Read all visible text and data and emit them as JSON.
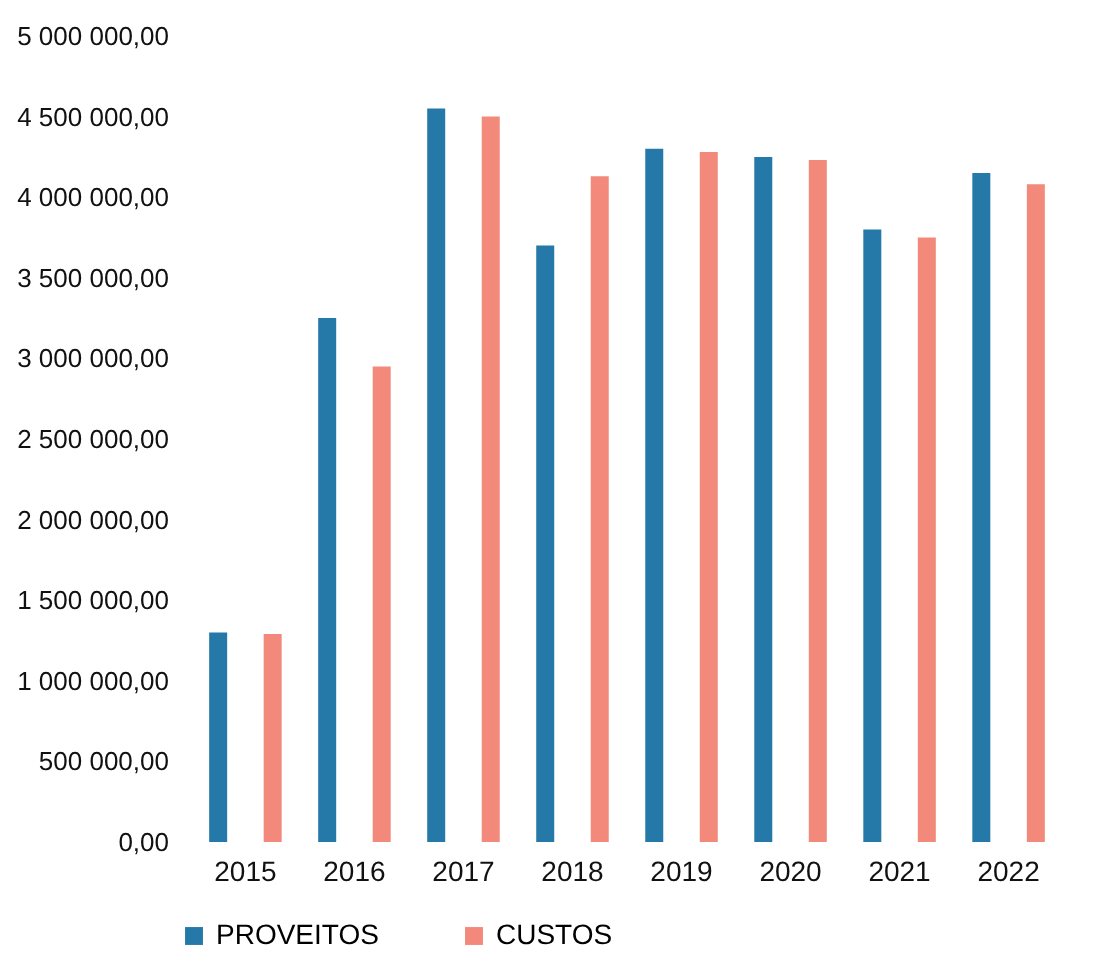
{
  "chart_data": {
    "type": "bar",
    "categories": [
      "2015",
      "2016",
      "2017",
      "2018",
      "2019",
      "2020",
      "2021",
      "2022"
    ],
    "series": [
      {
        "name": "PROVEITOS",
        "color": "#2479a8",
        "values": [
          1300000,
          3250000,
          4550000,
          3700000,
          4300000,
          4250000,
          3800000,
          4150000
        ]
      },
      {
        "name": "CUSTOS",
        "color": "#f2897a",
        "values": [
          1290000,
          2950000,
          4500000,
          4130000,
          4280000,
          4230000,
          3750000,
          4080000
        ]
      }
    ],
    "ylim": [
      0,
      5000000
    ],
    "yticks": [
      {
        "value": 0,
        "label": "0,00"
      },
      {
        "value": 500000,
        "label": "500 000,00"
      },
      {
        "value": 1000000,
        "label": "1 000 000,00"
      },
      {
        "value": 1500000,
        "label": "1 500 000,00"
      },
      {
        "value": 2000000,
        "label": "2 000 000,00"
      },
      {
        "value": 2500000,
        "label": "2 500 000,00"
      },
      {
        "value": 3000000,
        "label": "3 000 000,00"
      },
      {
        "value": 3500000,
        "label": "3 500 000,00"
      },
      {
        "value": 4000000,
        "label": "4 000 000,00"
      },
      {
        "value": 4500000,
        "label": "4 500 000,00"
      },
      {
        "value": 5000000,
        "label": "5 000 000,00"
      }
    ],
    "grid": false,
    "legend": "bottom"
  }
}
